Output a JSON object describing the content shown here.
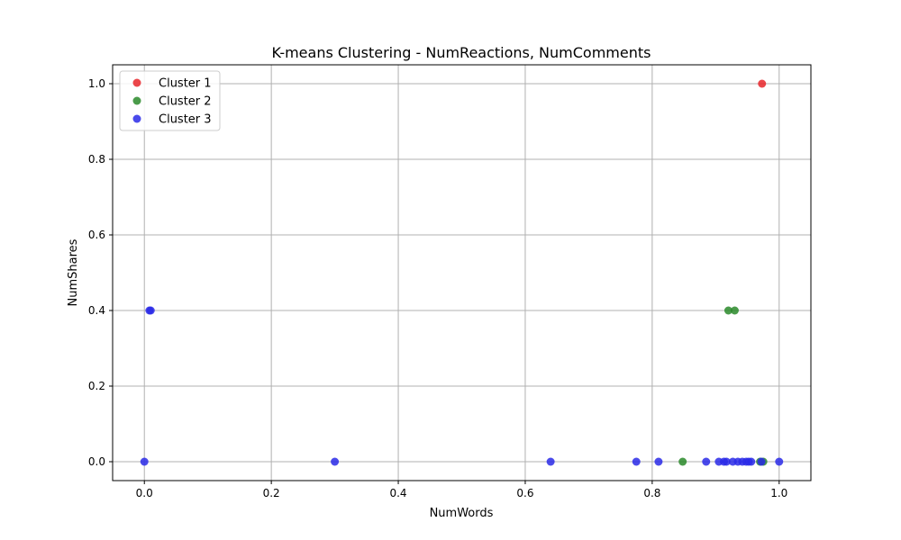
{
  "chart_data": {
    "type": "scatter",
    "title": "K-means Clustering - NumReactions, NumComments",
    "xlabel": "NumWords",
    "ylabel": "NumShares",
    "xlim": [
      -0.05,
      1.05
    ],
    "ylim": [
      -0.05,
      1.05
    ],
    "xticks": [
      0.0,
      0.2,
      0.4,
      0.6,
      0.8,
      1.0
    ],
    "yticks": [
      0.0,
      0.2,
      0.4,
      0.6,
      0.8,
      1.0
    ],
    "xtick_labels": [
      "0.0",
      "0.2",
      "0.4",
      "0.6",
      "0.8",
      "1.0"
    ],
    "ytick_labels": [
      "0.0",
      "0.2",
      "0.4",
      "0.6",
      "0.8",
      "1.0"
    ],
    "grid": true,
    "legend_position": "top-left",
    "series": [
      {
        "name": "Cluster 1",
        "color": "#e8262a",
        "points": [
          [
            0.973,
            1.0
          ]
        ]
      },
      {
        "name": "Cluster 2",
        "color": "#2a8a2a",
        "points": [
          [
            0.92,
            0.4
          ],
          [
            0.93,
            0.4
          ],
          [
            0.848,
            0.0
          ],
          [
            0.97,
            0.0
          ],
          [
            0.975,
            0.0
          ]
        ]
      },
      {
        "name": "Cluster 3",
        "color": "#2a2ae8",
        "points": [
          [
            0.008,
            0.4
          ],
          [
            0.01,
            0.4
          ],
          [
            0.0,
            0.0
          ],
          [
            0.3,
            0.0
          ],
          [
            0.64,
            0.0
          ],
          [
            0.775,
            0.0
          ],
          [
            0.81,
            0.0
          ],
          [
            0.885,
            0.0
          ],
          [
            0.905,
            0.0
          ],
          [
            0.913,
            0.0
          ],
          [
            0.917,
            0.0
          ],
          [
            0.927,
            0.0
          ],
          [
            0.935,
            0.0
          ],
          [
            0.942,
            0.0
          ],
          [
            0.948,
            0.0
          ],
          [
            0.952,
            0.0
          ],
          [
            0.956,
            0.0
          ],
          [
            0.972,
            0.0
          ],
          [
            1.0,
            0.0
          ]
        ]
      }
    ]
  }
}
